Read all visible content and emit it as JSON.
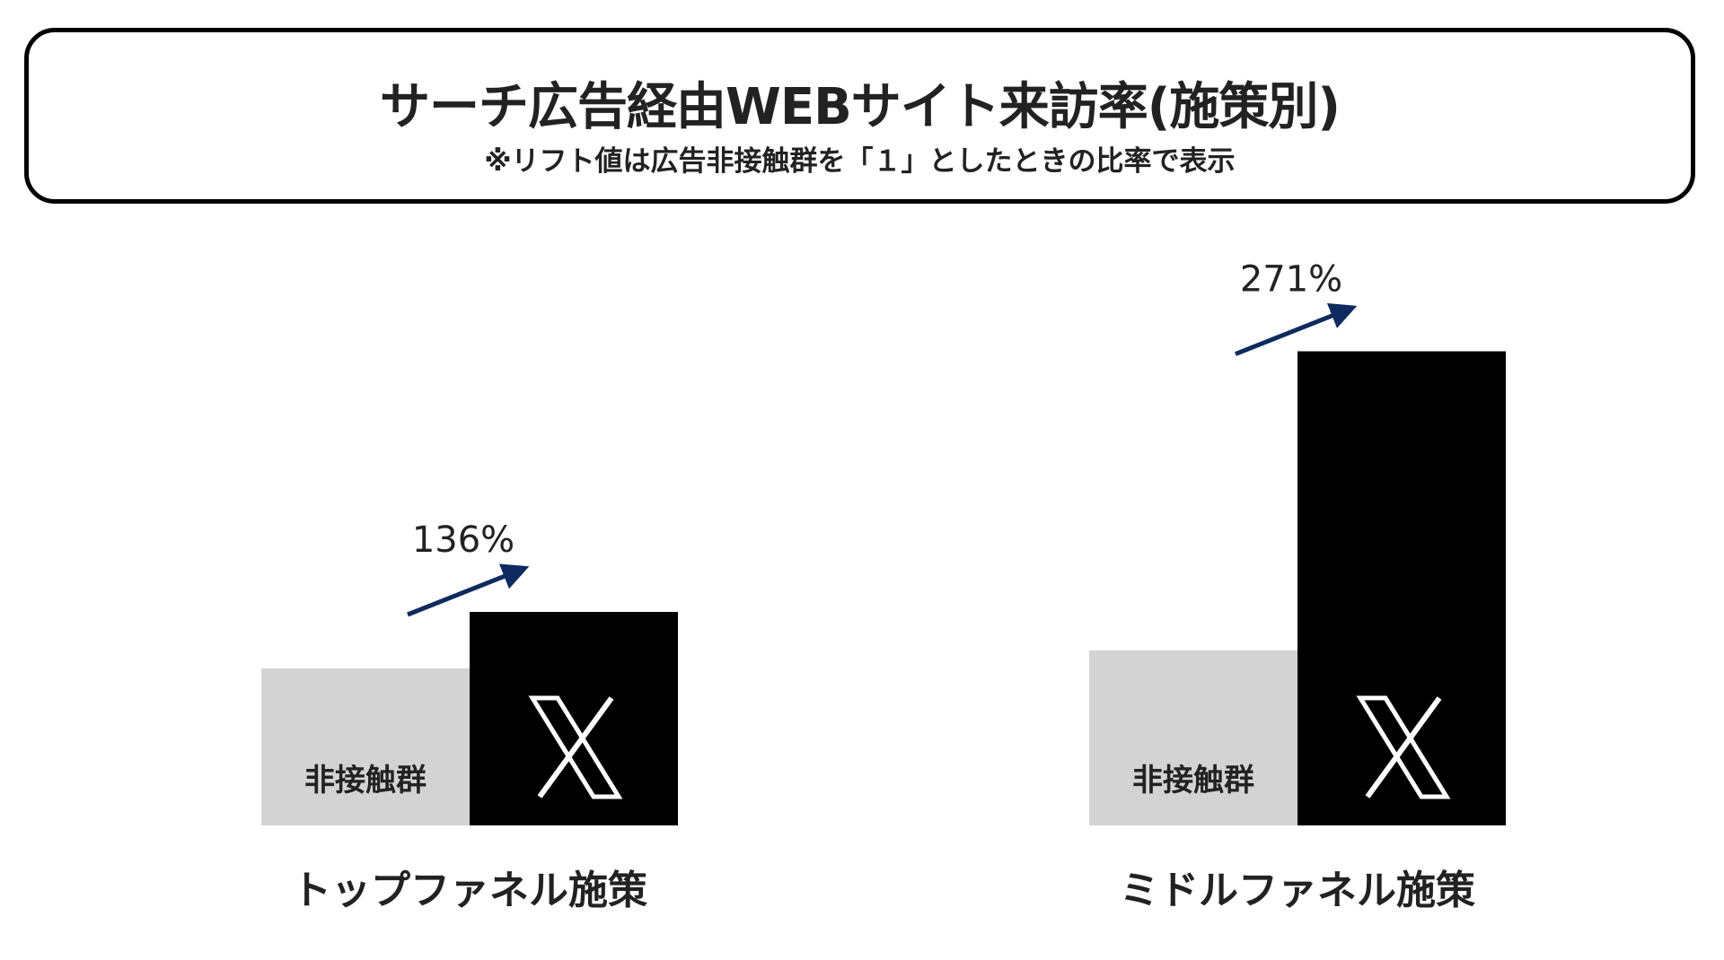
{
  "header": {
    "title": "サーチ広告経由WEBサイト来訪率(施策別)",
    "subtitle": "※リフト値は広告非接触群を「１」としたときの比率で表示"
  },
  "chart_data": {
    "type": "bar",
    "title": "サーチ広告経由WEBサイト来訪率(施策別)",
    "categories": [
      "トップファネル施策",
      "ミドルファネル施策"
    ],
    "series": [
      {
        "name": "非接触群",
        "values": [
          1.0,
          1.0
        ],
        "color": "#d3d3d3"
      },
      {
        "name": "X",
        "values": [
          1.36,
          2.71
        ],
        "color": "#000000"
      }
    ],
    "lift_labels": [
      "136%",
      "271%"
    ],
    "arrow_color": "#0e2a5e",
    "xlabel": "",
    "ylabel": "",
    "grid": false
  }
}
